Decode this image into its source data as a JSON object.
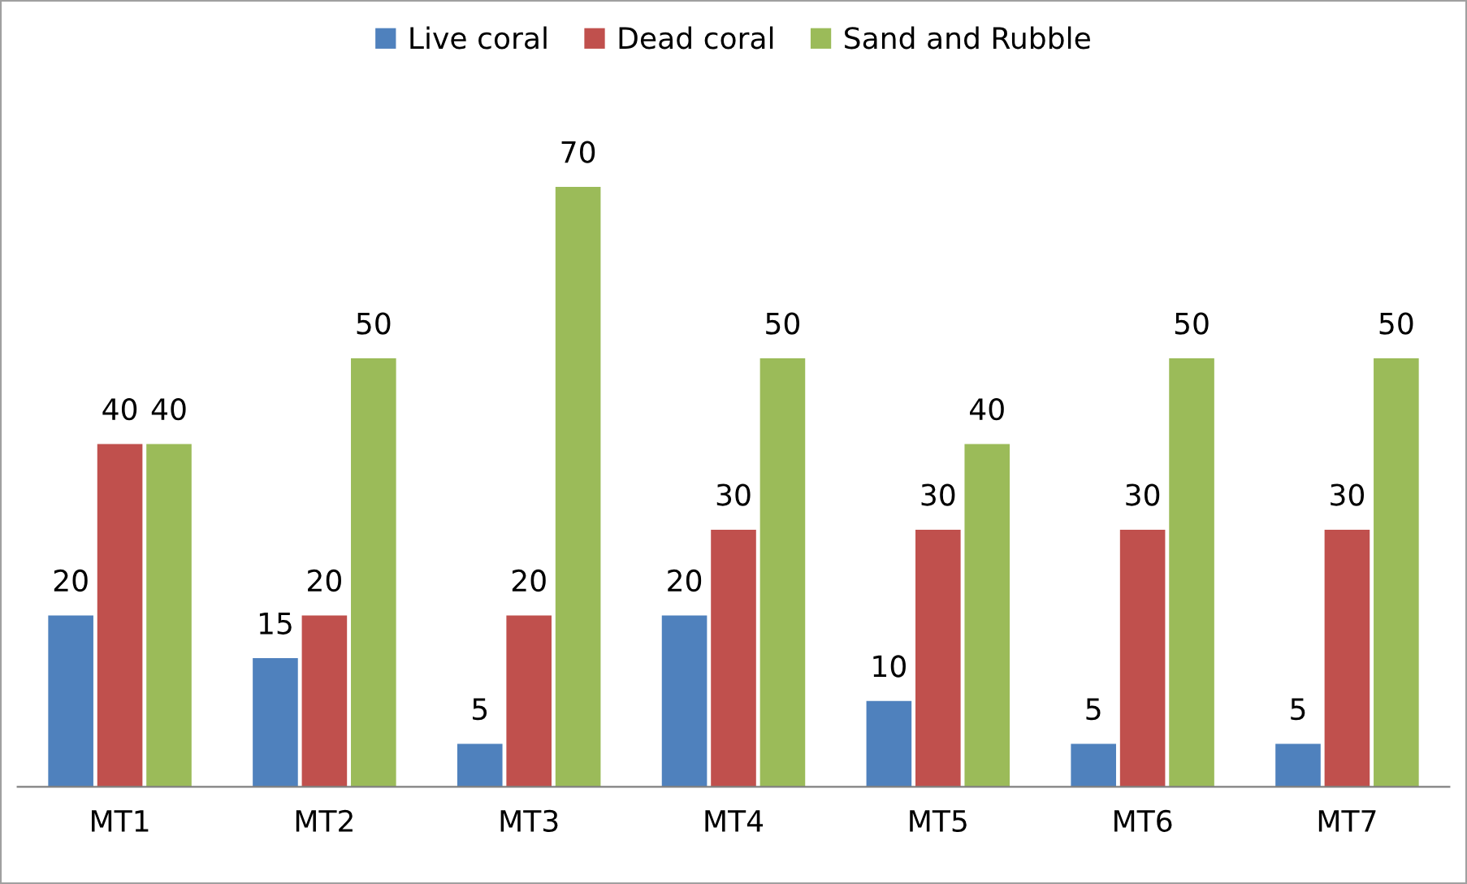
{
  "chart_data": {
    "type": "bar",
    "categories": [
      "MT1",
      "MT2",
      "MT3",
      "MT4",
      "MT5",
      "MT6",
      "MT7"
    ],
    "series": [
      {
        "name": "Live coral",
        "color": "#4f81bd",
        "values": [
          20,
          15,
          5,
          20,
          10,
          5,
          5
        ]
      },
      {
        "name": "Dead coral",
        "color": "#c0504d",
        "values": [
          40,
          20,
          20,
          30,
          30,
          30,
          30
        ]
      },
      {
        "name": "Sand and Rubble",
        "color": "#9bbb59",
        "values": [
          40,
          50,
          70,
          50,
          40,
          50,
          50
        ]
      }
    ],
    "data_labels": true,
    "legend": "top",
    "grid": false,
    "tick_labels": "x"
  }
}
